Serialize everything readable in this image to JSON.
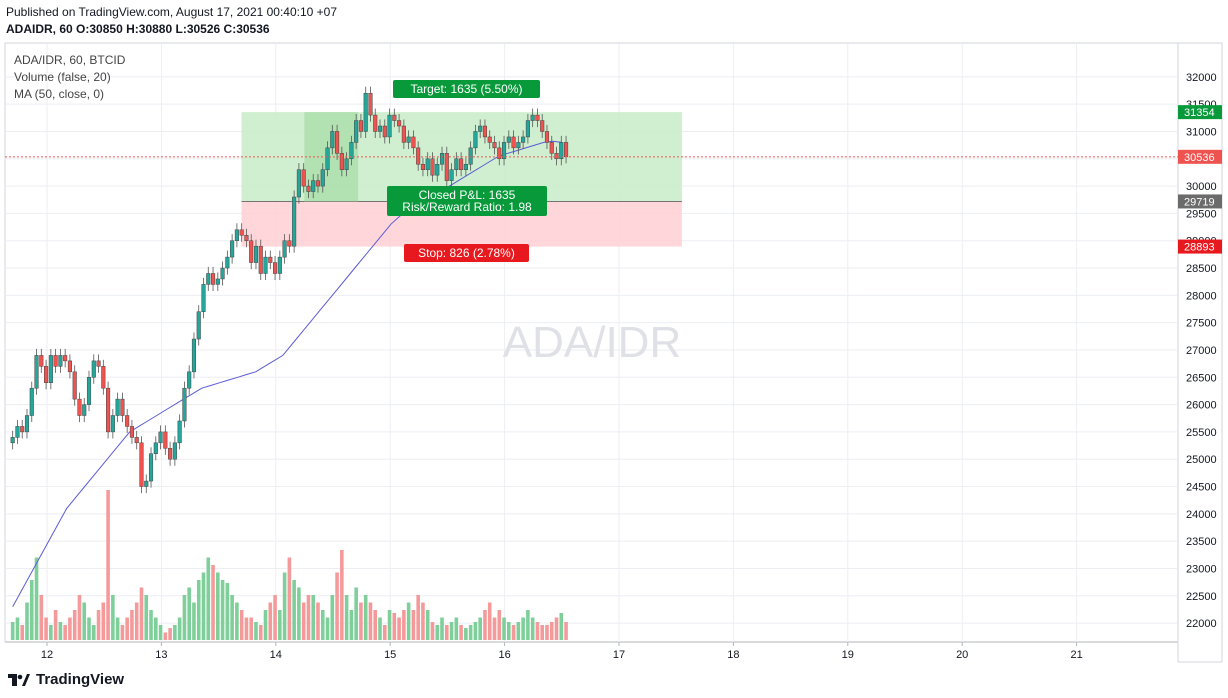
{
  "header": {
    "published": "Published on TradingView.com, August 17, 2021 00:40:10 +07",
    "symbol": "ADAIDR, 60",
    "o_label": "O:",
    "o_value": "30850",
    "h_label": "H:",
    "h_value": "30880",
    "l_label": "L:",
    "l_value": "30526",
    "c_label": "C:",
    "c_value": "30536"
  },
  "legend": {
    "symbol_line": "ADA/IDR, 60, BTCID",
    "volume_line": "Volume (false, 20)",
    "ma_line": "MA (50, close, 0)"
  },
  "watermark": "ADA/IDR",
  "footer": {
    "brand": "TradingView"
  },
  "colors": {
    "up": "#26a69a",
    "down": "#ef5350",
    "up_vol": "#7fcf9a",
    "down_vol": "#f59a9a",
    "ma": "#5b5bd6",
    "target_zone": "#c8ecc8",
    "stop_zone": "#ffcdd2",
    "target_label_bg": "#089a3a",
    "stop_label_bg": "#e8191e"
  },
  "position": {
    "target_label": "Target: 1635 (5.50%)",
    "closed_label": "Closed P&L: 1635",
    "rr_label": "Risk/Reward Ratio: 1.98",
    "stop_label": "Stop: 826 (2.78%)"
  },
  "chart_data": {
    "type": "candlestick",
    "title": "ADA/IDR, 60, BTCID",
    "x_ticks": [
      "12",
      "13",
      "14",
      "15",
      "16",
      "17",
      "18",
      "19",
      "20",
      "21"
    ],
    "y_ticks": [
      22000,
      22500,
      23000,
      23500,
      24000,
      24500,
      25000,
      25500,
      26000,
      26500,
      27000,
      27500,
      28000,
      28500,
      29000,
      29500,
      30000,
      30500,
      31000,
      31500,
      32000
    ],
    "ylim": [
      21800,
      32400
    ],
    "price_labels": [
      {
        "value": 31354,
        "text": "31354",
        "color": "#089a3a"
      },
      {
        "value": 30536,
        "text": "30536",
        "color": "#ef5350"
      },
      {
        "value": 29719,
        "text": "29719",
        "color": "#6b6b6b"
      },
      {
        "value": 28893,
        "text": "28893",
        "color": "#e8191e"
      }
    ],
    "current_price": 30536,
    "position": {
      "entry": 29719,
      "target": 31354,
      "stop": 28893,
      "start_day": 13.7,
      "end_day": 17.55
    },
    "candles_start_day": 11.7,
    "candle_step_day": 0.0417,
    "closes": [
      25400,
      25600,
      25500,
      25800,
      26300,
      26900,
      26700,
      26400,
      26900,
      26700,
      26900,
      26800,
      26600,
      26100,
      25800,
      26000,
      26500,
      26800,
      26700,
      26300,
      25500,
      25800,
      26100,
      25800,
      25600,
      25400,
      25300,
      24500,
      24600,
      25100,
      25300,
      25500,
      25200,
      25000,
      25300,
      25700,
      26300,
      26600,
      27200,
      27700,
      28200,
      28400,
      28200,
      28300,
      28500,
      28700,
      29000,
      29200,
      29100,
      29000,
      28600,
      28900,
      28400,
      28700,
      28600,
      28400,
      28700,
      29000,
      28900,
      29800,
      30300,
      30000,
      29900,
      30100,
      30000,
      30300,
      30700,
      31000,
      30600,
      30300,
      30500,
      30800,
      31200,
      31000,
      31700,
      31300,
      31000,
      31100,
      30900,
      31300,
      31200,
      31100,
      30800,
      30900,
      30700,
      30400,
      30300,
      30500,
      30200,
      30400,
      30600,
      30100,
      30300,
      30500,
      30300,
      30400,
      30700,
      31000,
      31100,
      30900,
      30800,
      30700,
      30500,
      30800,
      30900,
      30700,
      30800,
      30900,
      31200,
      31300,
      31200,
      31000,
      30800,
      30600,
      30500,
      30800,
      30536
    ],
    "volume_heights_rel": [
      0.12,
      0.15,
      0.1,
      0.25,
      0.4,
      0.55,
      0.3,
      0.15,
      0.1,
      0.2,
      0.12,
      0.1,
      0.15,
      0.2,
      0.3,
      0.25,
      0.15,
      0.1,
      0.2,
      0.25,
      1.0,
      0.3,
      0.15,
      0.1,
      0.15,
      0.2,
      0.25,
      0.35,
      0.3,
      0.2,
      0.15,
      0.1,
      0.05,
      0.08,
      0.1,
      0.15,
      0.3,
      0.35,
      0.25,
      0.4,
      0.45,
      0.55,
      0.5,
      0.45,
      0.4,
      0.38,
      0.3,
      0.25,
      0.2,
      0.15,
      0.15,
      0.12,
      0.1,
      0.2,
      0.25,
      0.3,
      0.2,
      0.45,
      0.55,
      0.4,
      0.35,
      0.25,
      0.3,
      0.3,
      0.25,
      0.2,
      0.15,
      0.3,
      0.45,
      0.6,
      0.3,
      0.2,
      0.35,
      0.25,
      0.3,
      0.25,
      0.2,
      0.15,
      0.1,
      0.2,
      0.18,
      0.15,
      0.2,
      0.25,
      0.2,
      0.3,
      0.25,
      0.2,
      0.12,
      0.1,
      0.15,
      0.1,
      0.12,
      0.15,
      0.1,
      0.08,
      0.1,
      0.12,
      0.15,
      0.2,
      0.25,
      0.15,
      0.2,
      0.15,
      0.12,
      0.1,
      0.12,
      0.15,
      0.2,
      0.15,
      0.12,
      0.1,
      0.1,
      0.12,
      0.15,
      0.18,
      0.12
    ],
    "ma_values": [
      22300,
      22600,
      22900,
      23200,
      23500,
      23800,
      24100,
      24300,
      24500,
      24700,
      24900,
      25100,
      25300,
      25500,
      25600,
      25700,
      25800,
      25900,
      26000,
      26100,
      26200,
      26300,
      26350,
      26400,
      26450,
      26500,
      26550,
      26600,
      26700,
      26800,
      26900,
      27100,
      27300,
      27500,
      27700,
      27900,
      28100,
      28300,
      28500,
      28700,
      28900,
      29100,
      29300,
      29450,
      29550,
      29650,
      29750,
      29850,
      29950,
      30050,
      30150,
      30250,
      30350,
      30450,
      30550,
      30600,
      30650,
      30700,
      30750,
      30800,
      30820,
      30800
    ]
  }
}
